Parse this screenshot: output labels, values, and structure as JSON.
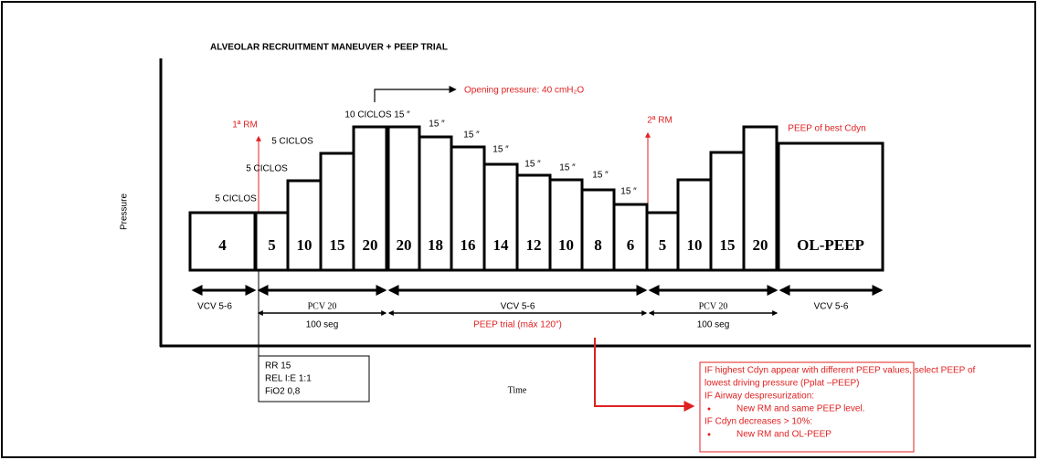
{
  "title": "ALVEOLAR RECRUITMENT MANEUVER + PEEP TRIAL",
  "y_axis_label": "Pressure",
  "x_axis_label": "Time",
  "steps": [
    "4",
    "5",
    "10",
    "15",
    "20",
    "20",
    "18",
    "16",
    "14",
    "12",
    "10",
    "8",
    "6",
    "5",
    "10",
    "15",
    "20",
    "OL-PEEP"
  ],
  "cycle_labels": [
    "5 CICLOS",
    "5 CICLOS",
    "5 CICLOS",
    "10 CICLOS"
  ],
  "pause_labels": [
    "15 ″",
    "15 ″",
    "15 ″",
    "15 ″",
    "15 ″",
    "15 ″",
    "15 ″",
    "15 ″"
  ],
  "rm_labels": [
    "1ª RM",
    "2ª RM"
  ],
  "opening_pressure": "Opening pressure: 40 cmH₂O",
  "best_peep_note": "PEEP of best Cdyn",
  "modes": [
    "VCV 5-6",
    "PCV 20",
    "VCV 5-6",
    "PCV 20",
    "VCV 5-6"
  ],
  "durations": [
    "100 seg",
    "PEEP trial  (máx 120″)",
    "100 seg"
  ],
  "settings": [
    "RR 15",
    "REL I:E 1:1",
    "FiO2 0,8"
  ],
  "note": [
    "IF highest Cdyn appear with different PEEP values, select PEEP of",
    "lowest driving pressure (Pplat –PEEP)",
    "IF Airway despresurization:",
    "New RM and same PEEP level.",
    "IF Cdyn decreases > 10%:",
    "New RM and OL-PEEP"
  ]
}
